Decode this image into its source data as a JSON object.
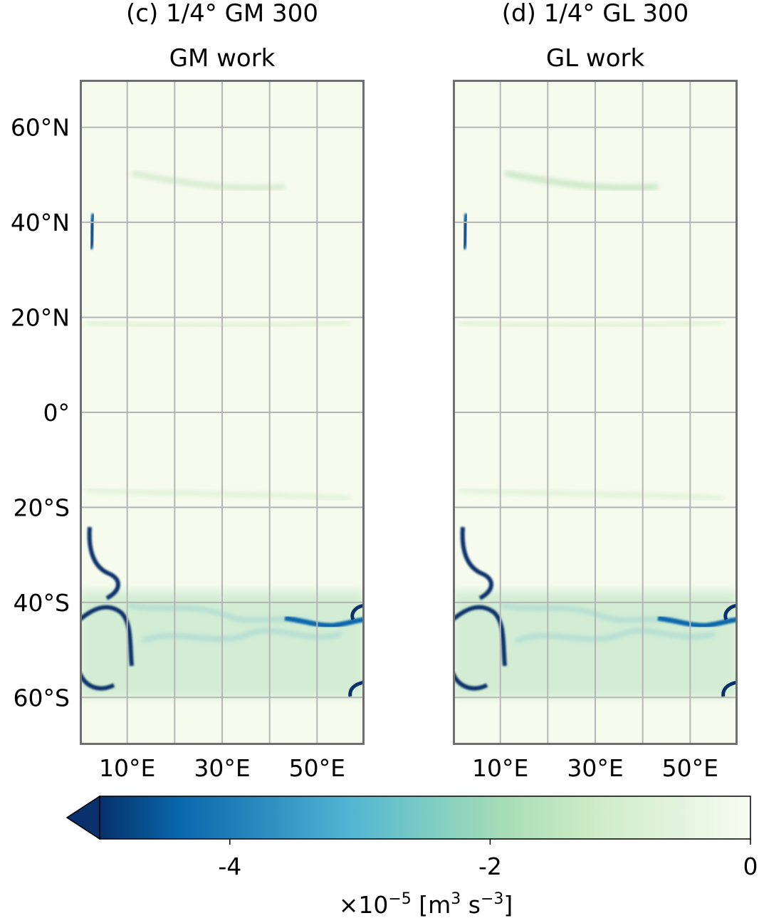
{
  "chart_data": [
    {
      "type": "heatmap",
      "title": "(c) 1/4°  GM 300",
      "subtitle": "GM work",
      "xticks": [
        "10°E",
        "30°E",
        "50°E"
      ],
      "yticks": [
        "60°N",
        "40°N",
        "20°N",
        "0°",
        "20°S",
        "40°S",
        "60°S"
      ],
      "x_tick_values": [
        10,
        30,
        50
      ],
      "y_tick_values": [
        60,
        40,
        20,
        0,
        -20,
        -40,
        -60
      ],
      "xlim": [
        0,
        60
      ],
      "ylim": [
        -70,
        70
      ],
      "grid": true,
      "features": [
        {
          "name": "western boundary current",
          "lon": [
            1,
            3
          ],
          "lat": [
            33,
            41
          ],
          "min_value": -5.0
        },
        {
          "name": "southern western boundary meanders",
          "lon": [
            0,
            10
          ],
          "lat": [
            -60,
            -30
          ],
          "min_value": -5.0
        },
        {
          "name": "circumpolar band",
          "lon": [
            0,
            60
          ],
          "lat": [
            -60,
            -40
          ],
          "min_value": -4.0
        },
        {
          "name": "eastern jet",
          "lon": [
            40,
            60
          ],
          "lat": [
            -46,
            -43
          ],
          "min_value": -4.5
        },
        {
          "name": "zonal band 47N",
          "lon": [
            10,
            50
          ],
          "lat": [
            46,
            50
          ],
          "min_value": -1.0
        },
        {
          "name": "zonal band 20N",
          "lon": [
            0,
            55
          ],
          "lat": [
            17,
            20
          ],
          "min_value": -0.6
        },
        {
          "name": "zonal band 18S",
          "lon": [
            0,
            55
          ],
          "lat": [
            -19,
            -16
          ],
          "min_value": -0.6
        }
      ]
    },
    {
      "type": "heatmap",
      "title": "(d) 1/4°  GL 300",
      "subtitle": "GL work",
      "xticks": [
        "10°E",
        "30°E",
        "50°E"
      ],
      "x_tick_values": [
        10,
        30,
        50
      ],
      "xlim": [
        0,
        60
      ],
      "ylim": [
        -70,
        70
      ],
      "grid": true,
      "features": [
        {
          "name": "western boundary current",
          "lon": [
            1,
            3
          ],
          "lat": [
            33,
            41
          ],
          "min_value": -5.0
        },
        {
          "name": "southern western boundary meanders",
          "lon": [
            0,
            10
          ],
          "lat": [
            -60,
            -30
          ],
          "min_value": -5.0
        },
        {
          "name": "circumpolar band",
          "lon": [
            0,
            60
          ],
          "lat": [
            -60,
            -40
          ],
          "min_value": -3.8
        },
        {
          "name": "eastern jet",
          "lon": [
            40,
            60
          ],
          "lat": [
            -46,
            -43
          ],
          "min_value": -4.5
        },
        {
          "name": "zonal band 47N",
          "lon": [
            10,
            50
          ],
          "lat": [
            46,
            50
          ],
          "min_value": -1.3
        },
        {
          "name": "zonal band 20N",
          "lon": [
            0,
            55
          ],
          "lat": [
            17,
            20
          ],
          "min_value": -0.6
        },
        {
          "name": "zonal band 18S",
          "lon": [
            0,
            55
          ],
          "lat": [
            -19,
            -16
          ],
          "min_value": -0.6
        }
      ]
    }
  ],
  "colorbar": {
    "ticks": [
      "-4",
      "-2",
      "0"
    ],
    "tick_values": [
      -4,
      -2,
      0
    ],
    "vmin": -5,
    "vmax": 0,
    "extend": "min",
    "label_main": "×10",
    "label_exp": "−5",
    "label_unit_open": " [m",
    "label_unit_exp1": "3",
    "label_unit_mid": " s",
    "label_unit_exp2": "−3",
    "label_unit_close": "]",
    "colors": [
      "#08306b",
      "#0868ac",
      "#2b8cbe",
      "#4eb3d3",
      "#7bccc4",
      "#a8ddb5",
      "#ccebc5",
      "#e0f3db",
      "#f7fcf0"
    ]
  }
}
